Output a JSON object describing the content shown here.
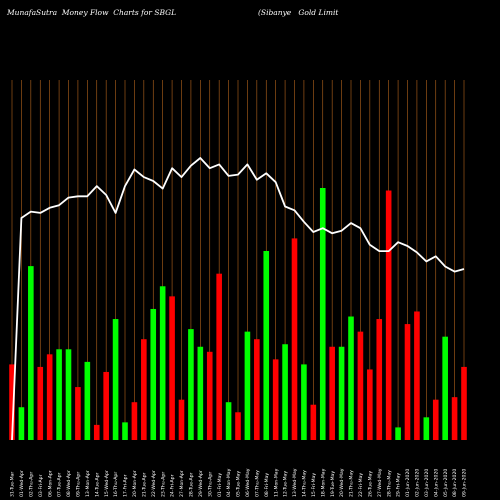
{
  "header": {
    "title": "MunafaSutra  Money Flow  Charts for SBGL",
    "company": "(Sibanye   Gold Limit"
  },
  "chart_data": {
    "type": "bar",
    "title": "MunafaSutra  Money Flow  Charts for SBGL",
    "background": "#000000",
    "grid": true,
    "grid_color": "#b5651d",
    "up_color": "#00ff00",
    "down_color": "#ff0000",
    "line_color": "#ffffff",
    "categories": [
      "09-Jun-2020",
      "08-Jun-2020",
      "05-Jun-2020",
      "04-Jun-2020",
      "03-Jun-2020",
      "02-Jun-2020",
      "01-Jun-2020",
      "29-Fri-May",
      "28-Thu-May",
      "27-Wed-May",
      "26-Tue-May",
      "22-Fri-May",
      "21-Thu-May",
      "20-Wed-May",
      "19-Tue-May",
      "18-Mon-May",
      "15-Fri-May",
      "14-Thu-May",
      "13-Wed-May",
      "12-Tue-May",
      "11-Mon-May",
      "08-Fri-May",
      "07-Thu-May",
      "06-Wed-May",
      "05-Tue-May",
      "04-Mon-May",
      "01-Fri-May",
      "30-Thu-Apr",
      "29-Wed-Apr",
      "28-Tue-Apr",
      "27-Mon-Apr",
      "24-Fri-Apr",
      "23-Thu-Apr",
      "22-Wed-Apr",
      "21-Tue-Apr",
      "20-Mon-Apr",
      "17-Fri-Apr",
      "16-Thu-Apr",
      "15-Wed-Apr",
      "14-Tue-Apr",
      "13-Mon-Apr",
      "09-Thu-Apr",
      "08-Wed-Apr",
      "07-Tue-Apr",
      "06-Mon-Apr",
      "03-Fri-Apr",
      "02-Thu-Apr",
      "01-Wed-Apr",
      "31-Tue-Mar"
    ],
    "series": [
      {
        "kind": "money_flow_bars",
        "values": [
          29,
          17,
          41,
          16,
          9,
          51,
          46,
          5,
          99,
          48,
          28,
          43,
          49,
          37,
          37,
          100,
          14,
          30,
          80,
          38,
          32,
          75,
          40,
          43,
          11,
          15,
          66,
          35,
          37,
          44,
          16,
          57,
          61,
          52,
          40,
          15,
          7,
          48,
          27,
          6,
          31,
          21,
          36,
          36,
          34,
          29,
          69,
          13,
          30
        ],
        "colors": [
          "red",
          "red",
          "green",
          "red",
          "green",
          "red",
          "red",
          "green",
          "red",
          "red",
          "red",
          "red",
          "green",
          "green",
          "red",
          "green",
          "red",
          "green",
          "red",
          "green",
          "red",
          "green",
          "red",
          "green",
          "red",
          "green",
          "red",
          "red",
          "green",
          "green",
          "red",
          "red",
          "green",
          "green",
          "red",
          "red",
          "green",
          "green",
          "red",
          "red",
          "green",
          "red",
          "green",
          "green",
          "red",
          "red",
          "green",
          "green",
          "red"
        ]
      },
      {
        "kind": "price_line",
        "values": [
          13.4,
          13.2,
          13.6,
          14.4,
          14.0,
          14.7,
          15.2,
          15.5,
          14.8,
          14.8,
          15.3,
          16.6,
          17.0,
          16.4,
          16.2,
          16.6,
          16.3,
          17.1,
          18.0,
          18.3,
          20.2,
          20.9,
          20.4,
          21.6,
          20.8,
          20.7,
          21.6,
          21.3,
          22.1,
          21.5,
          20.6,
          21.3,
          19.7,
          20.3,
          20.6,
          21.2,
          19.9,
          17.8,
          19.2,
          19.9,
          19.1,
          19.1,
          19.0,
          18.4,
          18.2,
          17.8,
          17.9,
          17.4,
          0.0
        ]
      }
    ]
  }
}
